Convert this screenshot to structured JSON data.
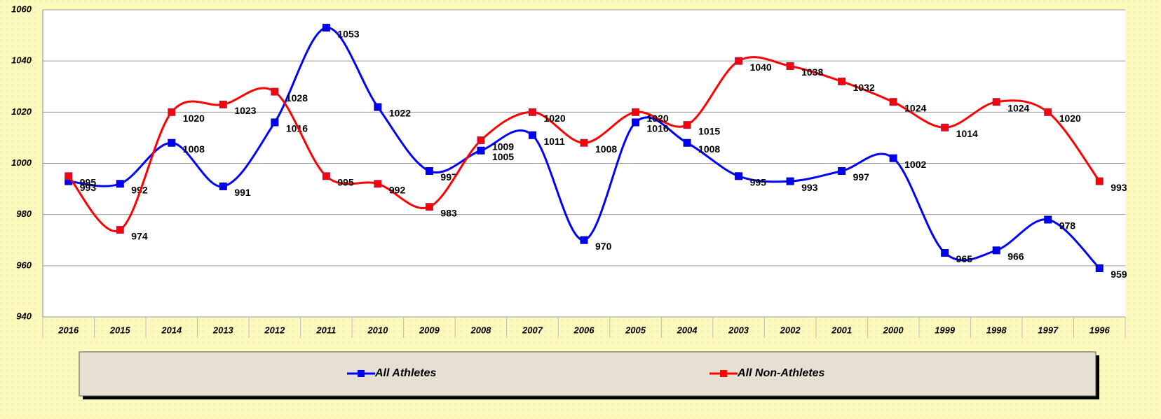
{
  "chart_data": {
    "type": "line",
    "categories": [
      "2016",
      "2015",
      "2014",
      "2013",
      "2012",
      "2011",
      "2010",
      "2009",
      "2008",
      "2007",
      "2006",
      "2005",
      "2004",
      "2003",
      "2002",
      "2001",
      "2000",
      "1999",
      "1998",
      "1997",
      "1996"
    ],
    "series": [
      {
        "name": "All Athletes",
        "color": "#0000ff",
        "values": [
          993,
          992,
          1008,
          991,
          1016,
          1053,
          1022,
          997,
          1005,
          1011,
          970,
          1016,
          1008,
          995,
          993,
          997,
          1002,
          965,
          966,
          978,
          959
        ]
      },
      {
        "name": "All Non-Athletes",
        "color": "#ff0000",
        "values": [
          995,
          974,
          1020,
          1023,
          1028,
          995,
          992,
          983,
          1009,
          1020,
          1008,
          1020,
          1015,
          1040,
          1038,
          1032,
          1024,
          1014,
          1024,
          1020,
          993
        ]
      }
    ],
    "ylim": [
      940,
      1060
    ],
    "yticks": [
      940,
      960,
      980,
      1000,
      1020,
      1040,
      1060
    ],
    "grid": true,
    "legend": "bottom"
  }
}
